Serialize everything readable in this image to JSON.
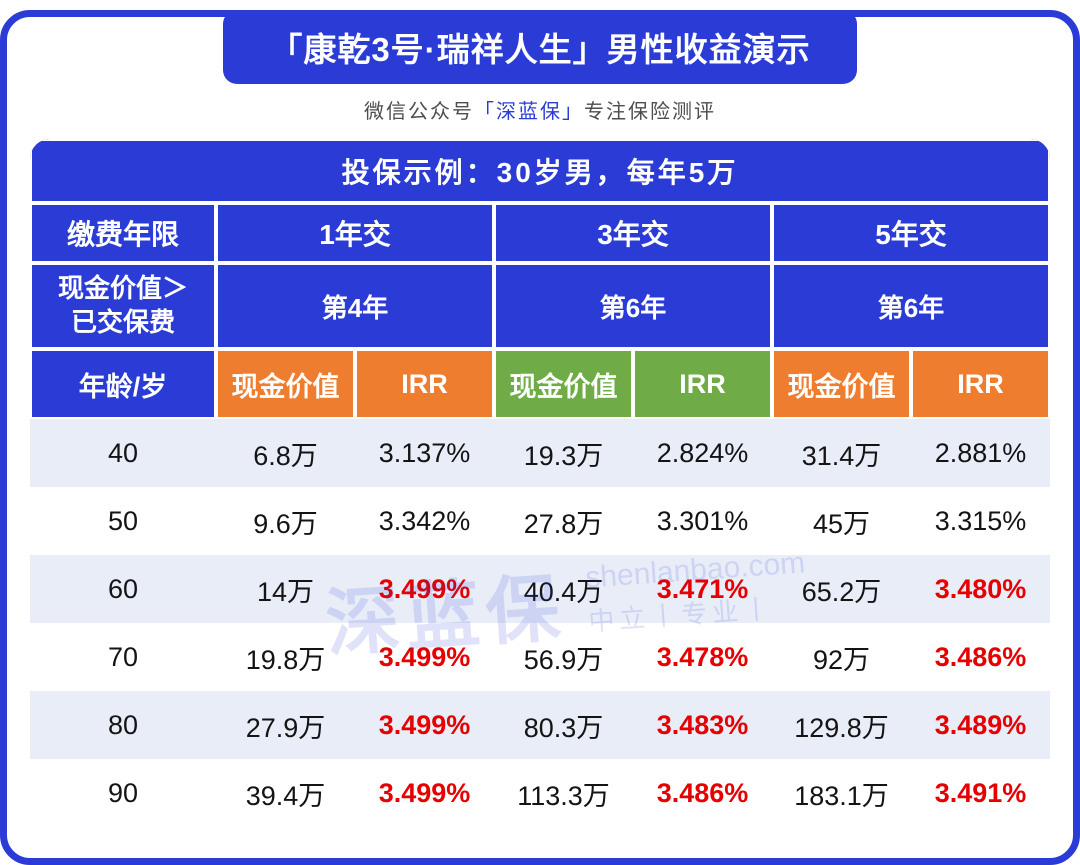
{
  "colors": {
    "blue": "#2b3cd6",
    "orange": "#ee7d2f",
    "green": "#6fac47",
    "rowalt": "#e8edf8",
    "red": "#e60000"
  },
  "banner": {
    "title": "「康乾3号·瑞祥人生」男性收益演示"
  },
  "subtitle": {
    "prefix": "微信公众号",
    "brand": "「深蓝保」",
    "suffix": "专注保险测评"
  },
  "table": {
    "example": "投保示例：30岁男，每年5万",
    "payment_term_label": "缴费年限",
    "payment_terms": [
      "1年交",
      "3年交",
      "5年交"
    ],
    "breakeven_label_line1": "现金价值＞",
    "breakeven_label_line2": "已交保费",
    "breakeven_years": [
      "第4年",
      "第6年",
      "第6年"
    ],
    "age_header": "年龄/岁",
    "value_headers": [
      "现金价值",
      "IRR",
      "现金价值",
      "IRR",
      "现金价值",
      "IRR"
    ],
    "rows": [
      {
        "age": "40",
        "cells": [
          {
            "v": "6.8万",
            "hl": false
          },
          {
            "v": "3.137%",
            "hl": false
          },
          {
            "v": "19.3万",
            "hl": false
          },
          {
            "v": "2.824%",
            "hl": false
          },
          {
            "v": "31.4万",
            "hl": false
          },
          {
            "v": "2.881%",
            "hl": false
          }
        ]
      },
      {
        "age": "50",
        "cells": [
          {
            "v": "9.6万",
            "hl": false
          },
          {
            "v": "3.342%",
            "hl": false
          },
          {
            "v": "27.8万",
            "hl": false
          },
          {
            "v": "3.301%",
            "hl": false
          },
          {
            "v": "45万",
            "hl": false
          },
          {
            "v": "3.315%",
            "hl": false
          }
        ]
      },
      {
        "age": "60",
        "cells": [
          {
            "v": "14万",
            "hl": false
          },
          {
            "v": "3.499%",
            "hl": true
          },
          {
            "v": "40.4万",
            "hl": false
          },
          {
            "v": "3.471%",
            "hl": true
          },
          {
            "v": "65.2万",
            "hl": false
          },
          {
            "v": "3.480%",
            "hl": true
          }
        ]
      },
      {
        "age": "70",
        "cells": [
          {
            "v": "19.8万",
            "hl": false
          },
          {
            "v": "3.499%",
            "hl": true
          },
          {
            "v": "56.9万",
            "hl": false
          },
          {
            "v": "3.478%",
            "hl": true
          },
          {
            "v": "92万",
            "hl": false
          },
          {
            "v": "3.486%",
            "hl": true
          }
        ]
      },
      {
        "age": "80",
        "cells": [
          {
            "v": "27.9万",
            "hl": false
          },
          {
            "v": "3.499%",
            "hl": true
          },
          {
            "v": "80.3万",
            "hl": false
          },
          {
            "v": "3.483%",
            "hl": true
          },
          {
            "v": "129.8万",
            "hl": false
          },
          {
            "v": "3.489%",
            "hl": true
          }
        ]
      },
      {
        "age": "90",
        "cells": [
          {
            "v": "39.4万",
            "hl": false
          },
          {
            "v": "3.499%",
            "hl": true
          },
          {
            "v": "113.3万",
            "hl": false
          },
          {
            "v": "3.486%",
            "hl": true
          },
          {
            "v": "183.1万",
            "hl": false
          },
          {
            "v": "3.491%",
            "hl": true
          }
        ]
      }
    ]
  },
  "watermark": {
    "brand": "深蓝保",
    "domain": "shenlanbao.com",
    "slogan": "中立丨专业丨"
  },
  "chart_data": {
    "type": "table",
    "title": "「康乾3号·瑞祥人生」男性收益演示",
    "subtitle": "投保示例：30岁男，每年5万",
    "group_headers": [
      {
        "payment_term": "1年交",
        "breakeven": "第4年"
      },
      {
        "payment_term": "3年交",
        "breakeven": "第6年"
      },
      {
        "payment_term": "5年交",
        "breakeven": "第6年"
      }
    ],
    "columns": [
      "年龄/岁",
      "现金价值(1年交)",
      "IRR(1年交)",
      "现金价值(3年交)",
      "IRR(3年交)",
      "现金价值(5年交)",
      "IRR(5年交)"
    ],
    "rows": [
      [
        "40",
        "6.8万",
        "3.137%",
        "19.3万",
        "2.824%",
        "31.4万",
        "2.881%"
      ],
      [
        "50",
        "9.6万",
        "3.342%",
        "27.8万",
        "3.301%",
        "45万",
        "3.315%"
      ],
      [
        "60",
        "14万",
        "3.499%",
        "40.4万",
        "3.471%",
        "65.2万",
        "3.480%"
      ],
      [
        "70",
        "19.8万",
        "3.499%",
        "56.9万",
        "3.478%",
        "92万",
        "3.486%"
      ],
      [
        "80",
        "27.9万",
        "3.499%",
        "80.3万",
        "3.483%",
        "129.8万",
        "3.489%"
      ],
      [
        "90",
        "39.4万",
        "3.499%",
        "113.3万",
        "3.486%",
        "183.1万",
        "3.491%"
      ]
    ]
  }
}
